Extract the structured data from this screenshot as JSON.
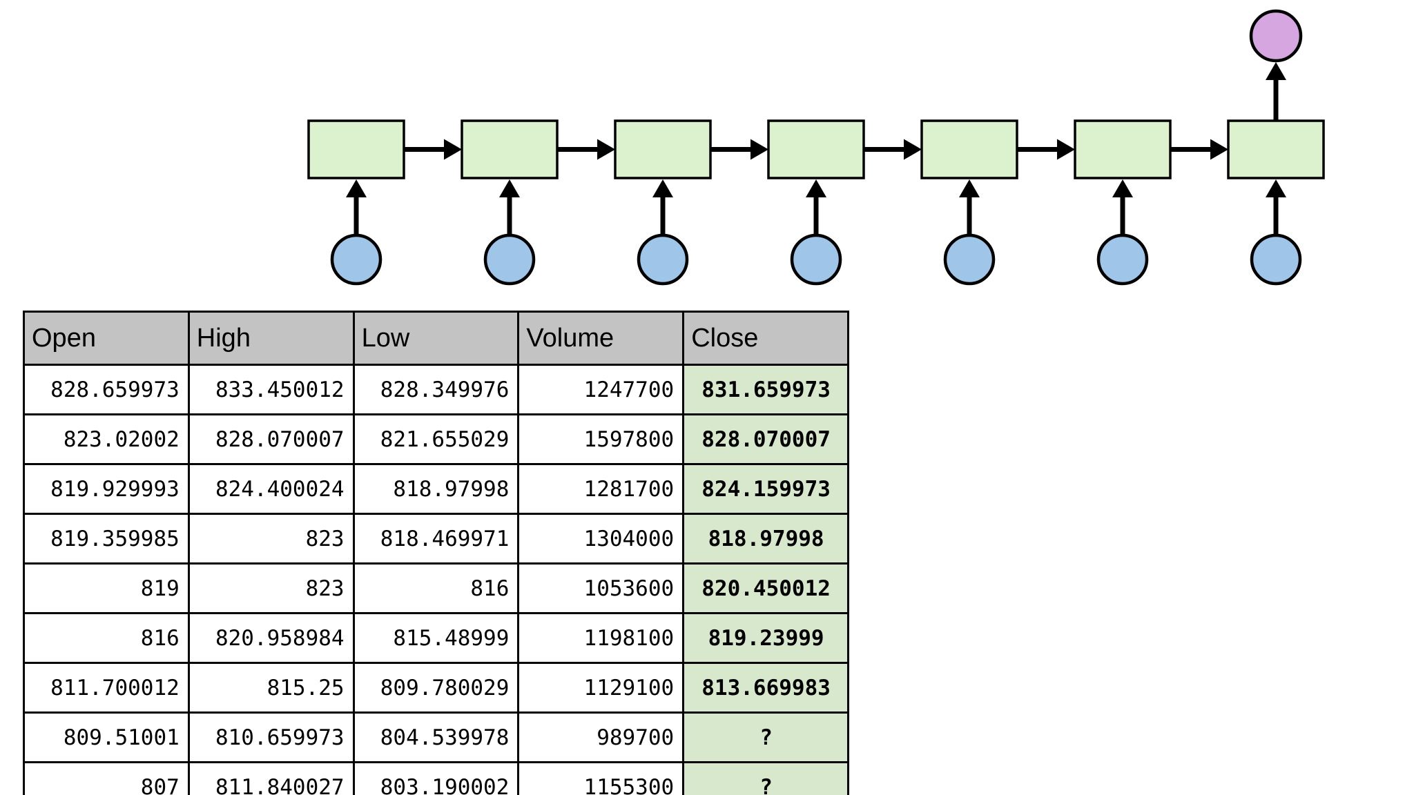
{
  "diagram": {
    "type": "unrolled-rnn",
    "unit_count": 7,
    "colors": {
      "cell_fill": "#dcf1cd",
      "input_fill": "#9fc5e8",
      "output_fill": "#d5a6e0",
      "stroke": "#000000"
    }
  },
  "table": {
    "headers": [
      "Open",
      "High",
      "Low",
      "Volume",
      "Close"
    ],
    "rows": [
      [
        "828.659973",
        "833.450012",
        "828.349976",
        "1247700",
        "831.659973"
      ],
      [
        "823.02002",
        "828.070007",
        "821.655029",
        "1597800",
        "828.070007"
      ],
      [
        "819.929993",
        "824.400024",
        "818.97998",
        "1281700",
        "824.159973"
      ],
      [
        "819.359985",
        "823",
        "818.469971",
        "1304000",
        "818.97998"
      ],
      [
        "819",
        "823",
        "816",
        "1053600",
        "820.450012"
      ],
      [
        "816",
        "820.958984",
        "815.48999",
        "1198100",
        "819.23999"
      ],
      [
        "811.700012",
        "815.25",
        "809.780029",
        "1129100",
        "813.669983"
      ],
      [
        "809.51001",
        "810.659973",
        "804.539978",
        "989700",
        "?"
      ],
      [
        "807",
        "811.840027",
        "803.190002",
        "1155300",
        "?"
      ]
    ],
    "colors": {
      "header_bg": "#c3c3c3",
      "close_col_bg": "#d8e8cc",
      "border": "#000000"
    }
  }
}
